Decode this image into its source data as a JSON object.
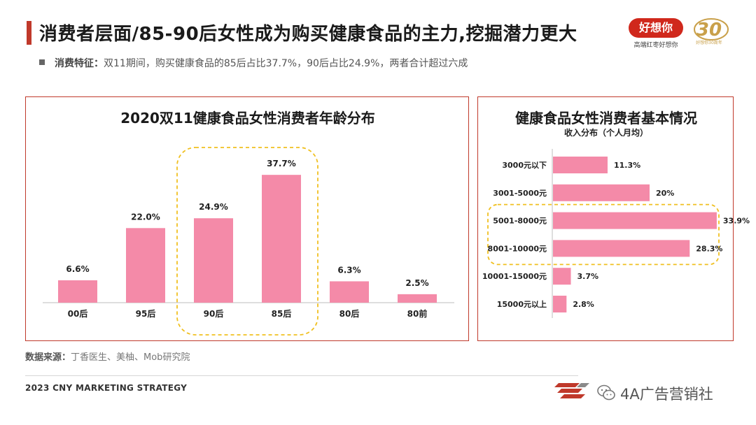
{
  "header": {
    "title_part1": "消费者层面/",
    "title_part2": "85-90后女性成为购买健康食品的主力,挖掘潜力更大",
    "accent_color": "#c0392b"
  },
  "brand": {
    "logo_text": "好想你",
    "slogan": "高端红枣好想你",
    "anniversary_number": "30",
    "anniversary_caption": "好想你30周年",
    "brand_color": "#d0281c",
    "gold_color": "#c9a04a"
  },
  "feature": {
    "icon": "square-bullet-icon",
    "label": "消费特征：",
    "text": "双11期间，购买健康食品的85后占比37.7%，90后占比24.9%，两者合计超过六成"
  },
  "chart_data": [
    {
      "type": "bar",
      "title": "2020双11健康食品女性消费者年龄分布",
      "categories": [
        "00后",
        "95后",
        "90后",
        "85后",
        "80后",
        "80前"
      ],
      "values": [
        6.6,
        22.0,
        24.9,
        37.7,
        6.3,
        2.5
      ],
      "value_labels": [
        "6.6%",
        "22.0%",
        "24.9%",
        "37.7%",
        "6.3%",
        "2.5%"
      ],
      "highlight_categories": [
        "90后",
        "85后"
      ],
      "bar_color": "#f48aa8",
      "highlight_color": "#f0c020",
      "ylim": [
        0,
        40
      ],
      "grid": false,
      "legend": "none"
    },
    {
      "type": "bar",
      "orientation": "horizontal",
      "title": "健康食品女性消费者基本情况",
      "subtitle": "收入分布（个人月均）",
      "categories": [
        "3000元以下",
        "3001-5000元",
        "5001-8000元",
        "8001-10000元",
        "10001-15000元",
        "15000元以上"
      ],
      "values": [
        11.3,
        20,
        33.9,
        28.3,
        3.7,
        2.8
      ],
      "value_labels": [
        "11.3%",
        "20%",
        "33.9%",
        "28.3%",
        "3.7%",
        "2.8%"
      ],
      "highlight_categories": [
        "5001-8000元",
        "8001-10000元"
      ],
      "bar_color": "#f48aa8",
      "highlight_color": "#f0c020",
      "xlim": [
        0,
        40
      ],
      "grid": false,
      "legend": "none"
    }
  ],
  "source": {
    "label": "数据来源：",
    "text": "丁香医生、美柚、Mob研究院"
  },
  "footer": {
    "text": "2023 CNY MARKETING STRATEGY",
    "watermark": "4A广告营销社",
    "watermark_icon": "wechat-icon"
  }
}
